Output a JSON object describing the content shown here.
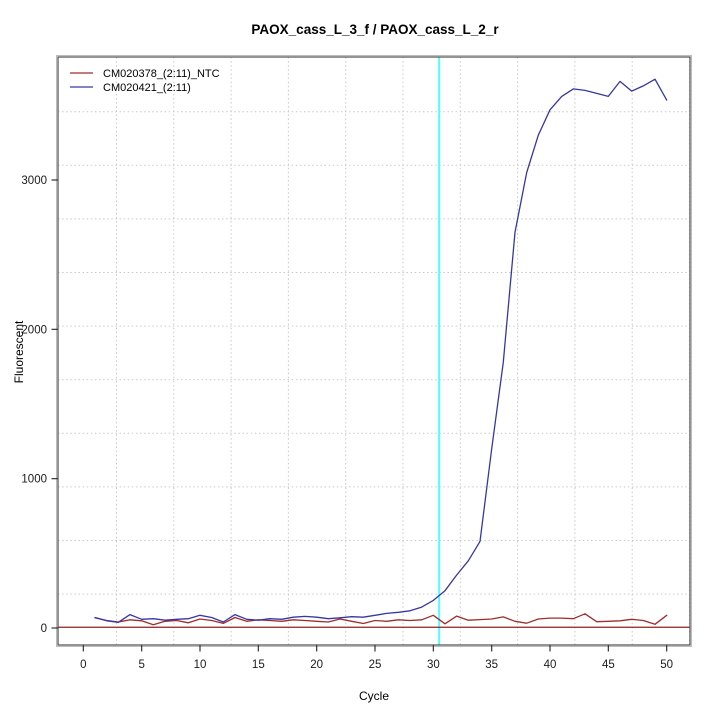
{
  "title": "PAOX_cass_L_3_f / PAOX_cass_L_2_r",
  "axes": {
    "x": {
      "label": "Cycle",
      "ticks": [
        0,
        5,
        10,
        15,
        20,
        25,
        30,
        35,
        40,
        45,
        50
      ]
    },
    "y": {
      "label": "Fluorescent",
      "ticks": [
        0,
        1000,
        2000,
        3000
      ]
    }
  },
  "legend": {
    "items": [
      {
        "label": "CM020378_(2:11)_NTC",
        "color": "#A02C2C"
      },
      {
        "label": "CM020421_(2:11)",
        "color": "#3737A3"
      }
    ]
  },
  "colors": {
    "grid": "#C9C9C9",
    "frame": "#4D4D4D",
    "frame_shadow": "#BBBBBB",
    "cyan_marker": "#4DFFFF",
    "threshold": "#8B2121"
  },
  "chart_data": {
    "type": "line",
    "title": "PAOX_cass_L_3_f / PAOX_cass_L_2_r",
    "xlabel": "Cycle",
    "ylabel": "Fluorescent",
    "xlim": [
      -2,
      54
    ],
    "ylim": [
      -150,
      3850
    ],
    "grid": true,
    "legend_position": "top-left",
    "x": [
      1,
      2,
      3,
      4,
      5,
      6,
      7,
      8,
      9,
      10,
      11,
      12,
      13,
      14,
      15,
      16,
      17,
      18,
      19,
      20,
      21,
      22,
      23,
      24,
      25,
      26,
      27,
      28,
      29,
      30,
      31,
      32,
      33,
      34,
      35,
      36,
      37,
      38,
      39,
      40,
      41,
      42,
      43,
      44,
      45,
      46,
      47,
      48,
      49,
      50
    ],
    "series": [
      {
        "name": "CM020378_(2:11)_NTC",
        "color": "#A02C2C",
        "values": [
          68,
          50,
          40,
          55,
          48,
          22,
          45,
          50,
          35,
          60,
          50,
          31,
          70,
          45,
          55,
          50,
          45,
          55,
          50,
          45,
          40,
          60,
          45,
          30,
          50,
          45,
          55,
          50,
          55,
          85,
          28,
          80,
          52,
          56,
          60,
          74,
          45,
          32,
          60,
          66,
          66,
          62,
          95,
          42,
          45,
          48,
          58,
          50,
          25,
          85
        ]
      },
      {
        "name": "CM020421_(2:11)",
        "color": "#3737A3",
        "values": [
          70,
          48,
          38,
          90,
          58,
          62,
          52,
          58,
          62,
          85,
          70,
          40,
          90,
          58,
          52,
          62,
          58,
          72,
          78,
          72,
          62,
          68,
          76,
          72,
          85,
          98,
          105,
          115,
          140,
          185,
          250,
          355,
          450,
          580,
          1200,
          1780,
          2650,
          3050,
          3300,
          3470,
          3560,
          3610,
          3600,
          3580,
          3560,
          3660,
          3595,
          3630,
          3675,
          3535
        ]
      }
    ],
    "threshold_line": {
      "value": 5,
      "color": "#8B2121"
    },
    "vertical_marker": {
      "cycle": 30.5,
      "color": "#4DFFFF"
    }
  }
}
